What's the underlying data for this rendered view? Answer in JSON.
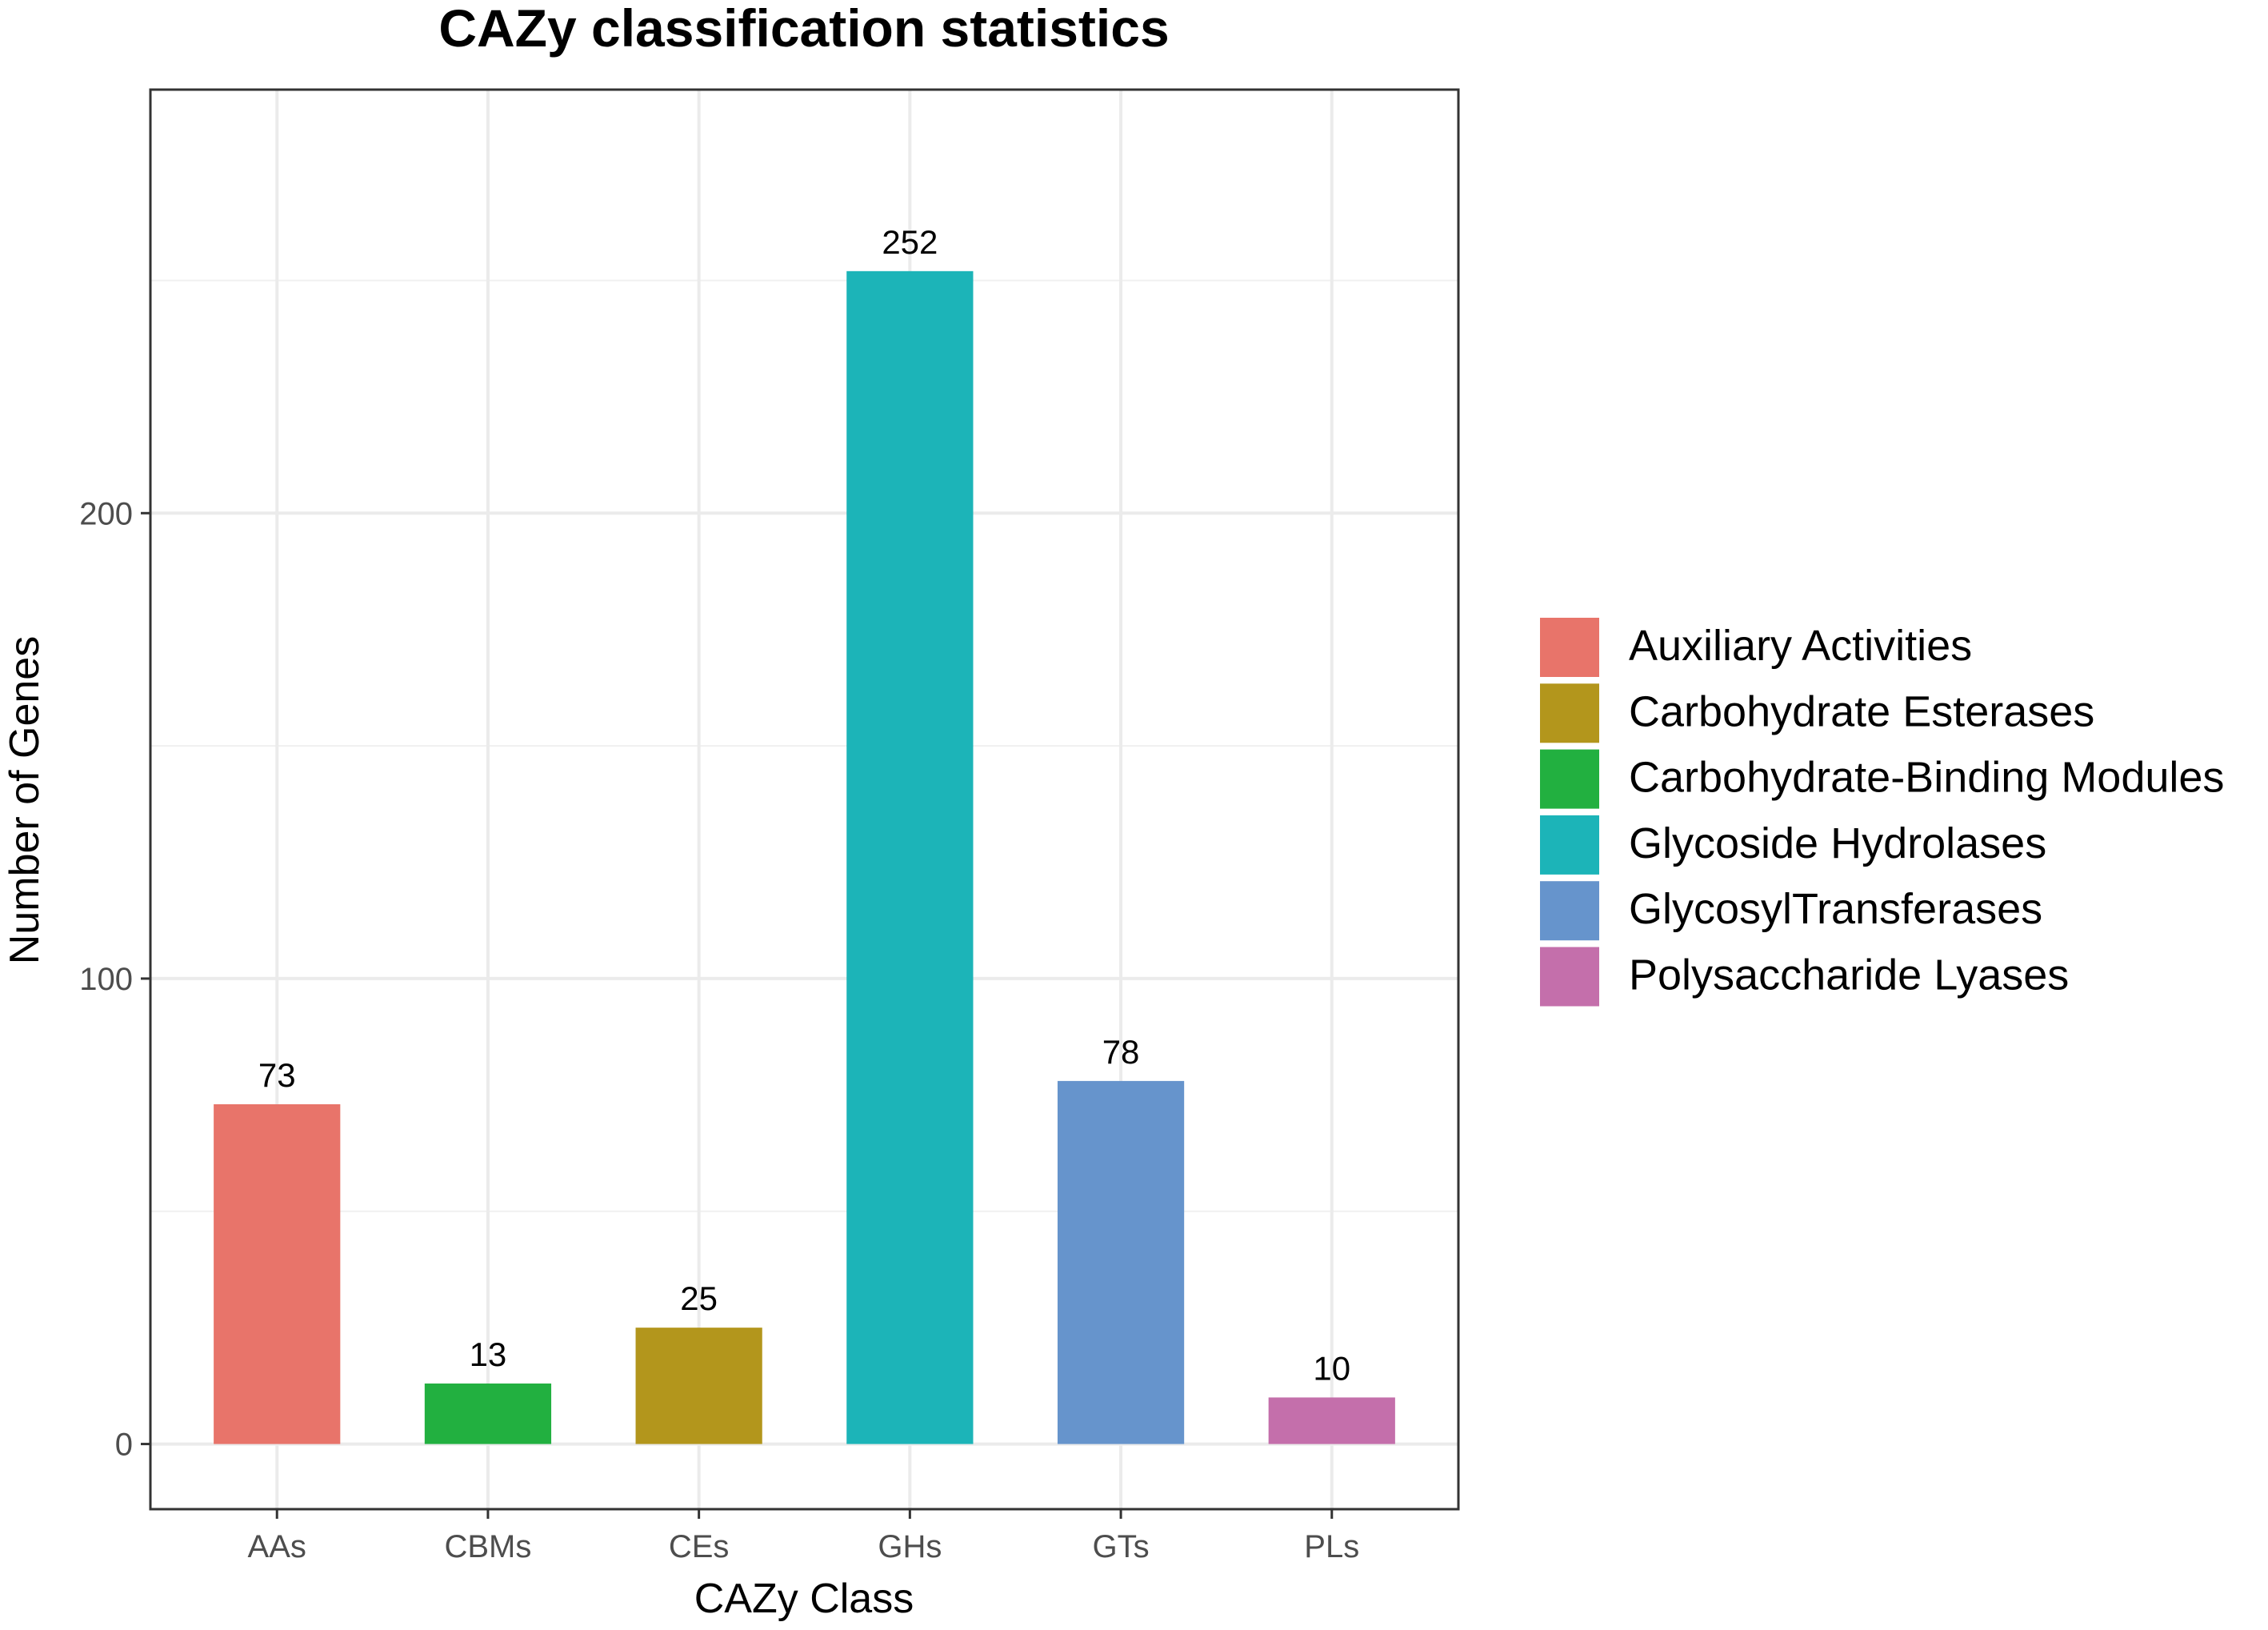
{
  "chart_data": {
    "type": "bar",
    "title": "CAZy classification statistics",
    "xlabel": "CAZy Class",
    "ylabel": "Number of Genes",
    "categories": [
      "AAs",
      "CBMs",
      "CEs",
      "GHs",
      "GTs",
      "PLs"
    ],
    "values": [
      73,
      13,
      25,
      252,
      78,
      10
    ],
    "data_labels": [
      "73",
      "13",
      "25",
      "252",
      "78",
      "10"
    ],
    "colors": [
      "#E8746A",
      "#22B040",
      "#B3961C",
      "#1CB4B8",
      "#6694CC",
      "#C46FAB"
    ],
    "ylim": [
      -14,
      291
    ],
    "yticks": [
      0,
      100,
      200
    ],
    "ytick_labels": [
      "0",
      "100",
      "200"
    ],
    "grid": true,
    "legend_position": "right",
    "legend": [
      {
        "label": "Auxiliary Activities",
        "color": "#E8746A"
      },
      {
        "label": "Carbohydrate Esterases",
        "color": "#B3961C"
      },
      {
        "label": "Carbohydrate-Binding Modules",
        "color": "#22B040"
      },
      {
        "label": "Glycoside Hydrolases",
        "color": "#1CB4B8"
      },
      {
        "label": "GlycosylTransferases",
        "color": "#6694CC"
      },
      {
        "label": "Polysaccharide Lyases",
        "color": "#C46FAB"
      }
    ]
  }
}
